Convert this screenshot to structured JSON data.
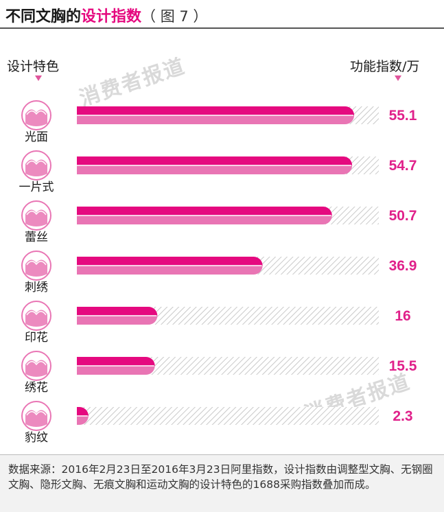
{
  "title": {
    "part1": "不同文胸的",
    "part2": "设计指数",
    "part3": "（ 图 7 ）"
  },
  "header": {
    "left_label": "设计特色",
    "right_label": "功能指数/万"
  },
  "watermark": "消费者报道",
  "footer_text": "数据来源：2016年2月23日至2016年3月23日阿里指数，设计指数由调整型文胸、无钢圈文胸、隐形文胸、无痕文胸和运动文胸的设计特色的1688采购指数叠加而成。",
  "colors": {
    "accent": "#e5097f",
    "accent_light": "#e975b4",
    "value_text": "#e0208a",
    "hatch": "#cfcfcf"
  },
  "chart_data": {
    "type": "bar",
    "orientation": "horizontal",
    "categories": [
      "光面",
      "一片式",
      "蕾丝",
      "刺绣",
      "印花",
      "绣花",
      "豹纹"
    ],
    "icons": [
      "plain-bra-icon",
      "one-piece-bra-icon",
      "lace-bra-icon",
      "embroidery-bra-icon",
      "print-bra-icon",
      "embroidered-flower-bra-icon",
      "leopard-bra-icon"
    ],
    "values": [
      55.1,
      54.7,
      50.7,
      36.9,
      16,
      15.5,
      2.3
    ],
    "labels": [
      "55.1",
      "54.7",
      "50.7",
      "36.9",
      "16",
      "15.5",
      "2.3"
    ],
    "xlim": [
      0,
      60
    ],
    "ylabel": "设计特色",
    "xlabel": "功能指数/万"
  }
}
